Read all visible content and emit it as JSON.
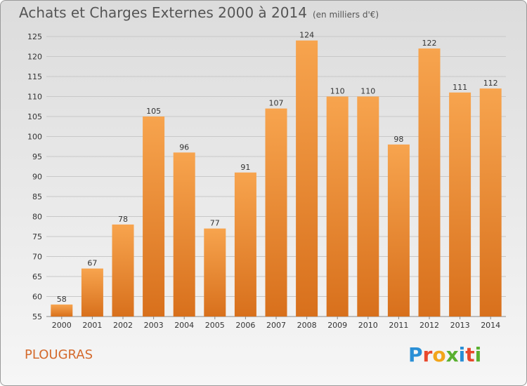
{
  "title": "Achats et Charges Externes 2000 à 2014",
  "unit": "(en milliers d'€)",
  "commune": "PLOUGRAS",
  "logo": {
    "letters": [
      "P",
      "r",
      "o",
      "x",
      "i",
      "t",
      "i"
    ],
    "colors": [
      "#2a8fd6",
      "#e8482c",
      "#f2a51a",
      "#5ab030",
      "#2a8fd6",
      "#e8482c",
      "#5ab030"
    ]
  },
  "colors": {
    "bar_top": "#f7a44e",
    "bar_bottom": "#d8701c",
    "grid": "#c8c8c8",
    "text": "#333333"
  },
  "chart_data": {
    "type": "bar",
    "categories": [
      "2000",
      "2001",
      "2002",
      "2003",
      "2004",
      "2005",
      "2006",
      "2007",
      "2008",
      "2009",
      "2010",
      "2011",
      "2012",
      "2013",
      "2014"
    ],
    "values": [
      58,
      67,
      78,
      105,
      96,
      77,
      91,
      107,
      124,
      110,
      110,
      98,
      122,
      111,
      112
    ],
    "ylim": [
      55,
      125
    ],
    "yticks": [
      55,
      60,
      65,
      70,
      75,
      80,
      85,
      90,
      95,
      100,
      105,
      110,
      115,
      120,
      125
    ],
    "grid": true
  }
}
